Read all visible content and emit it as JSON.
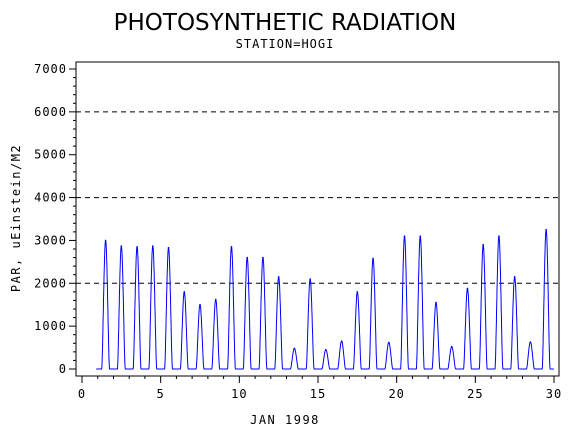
{
  "chart_data": {
    "type": "line",
    "title": "PHOTOSYNTHETIC RADIATION",
    "subtitle": "STATION=HOGI",
    "xlabel": "JAN 1998",
    "ylabel": "PAR, uEinstein/M2",
    "xlim": [
      0,
      30
    ],
    "ylim": [
      0,
      7000
    ],
    "xticks": [
      0,
      5,
      10,
      15,
      20,
      25,
      30
    ],
    "yticks": [
      0,
      1000,
      2000,
      3000,
      4000,
      5000,
      6000,
      7000
    ],
    "reference_lines": [
      2000,
      4000,
      6000
    ],
    "grid": false,
    "line_color": "#0000ff",
    "series": [
      {
        "daily_peaks": [
          {
            "day": 1.5,
            "value": 3000
          },
          {
            "day": 2.5,
            "value": 2870
          },
          {
            "day": 3.5,
            "value": 2850
          },
          {
            "day": 4.5,
            "value": 2870
          },
          {
            "day": 5.5,
            "value": 2830
          },
          {
            "day": 6.5,
            "value": 1800
          },
          {
            "day": 7.5,
            "value": 1500
          },
          {
            "day": 8.5,
            "value": 1620
          },
          {
            "day": 9.5,
            "value": 2850
          },
          {
            "day": 10.5,
            "value": 2600
          },
          {
            "day": 11.5,
            "value": 2600
          },
          {
            "day": 12.5,
            "value": 2150
          },
          {
            "day": 13.5,
            "value": 480
          },
          {
            "day": 14.5,
            "value": 2100
          },
          {
            "day": 15.5,
            "value": 450
          },
          {
            "day": 16.5,
            "value": 650
          },
          {
            "day": 17.5,
            "value": 1800
          },
          {
            "day": 18.5,
            "value": 2580
          },
          {
            "day": 19.5,
            "value": 620
          },
          {
            "day": 20.5,
            "value": 3100
          },
          {
            "day": 21.5,
            "value": 3100
          },
          {
            "day": 22.5,
            "value": 1550
          },
          {
            "day": 23.5,
            "value": 520
          },
          {
            "day": 24.5,
            "value": 1880
          },
          {
            "day": 25.5,
            "value": 2900
          },
          {
            "day": 26.5,
            "value": 3100
          },
          {
            "day": 27.5,
            "value": 2150
          },
          {
            "day": 28.5,
            "value": 630
          },
          {
            "day": 29.5,
            "value": 3250
          }
        ]
      }
    ]
  },
  "colors": {
    "axis": "#000000",
    "reference_line": "#000000",
    "series": "#0000ff"
  }
}
